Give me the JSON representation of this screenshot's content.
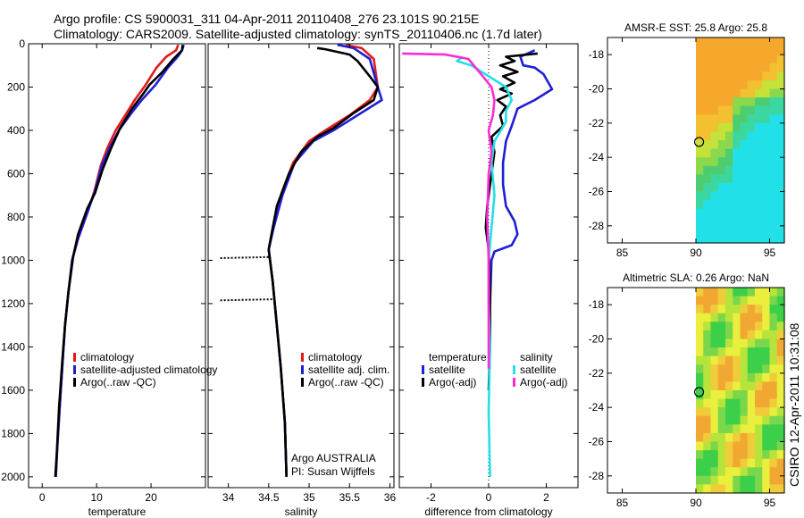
{
  "figure": {
    "title_line1": "Argo profile: CS 5900031_311 04-Apr-2011 20110408_276 23.101S 90.215E",
    "title_line2": "Climatology: CARS2009. Satellite-adjusted climatology: synTS_20110406.nc (1.7d later)",
    "side_stamp": "CSIRO 12-Apr-2011 10:31:08",
    "argo_credit_1": "Argo AUSTRALIA",
    "argo_credit_2": "PI: Susan Wijffels"
  },
  "colors": {
    "climatology": "#e31a1c",
    "satellite": "#1f1fd6",
    "argo": "#000000",
    "cyan": "#22e0e8",
    "magenta": "#ff2bd6"
  },
  "chart_data": [
    {
      "type": "line",
      "id": "temperature",
      "xlabel": "temperature",
      "xlim": [
        -2.5,
        30
      ],
      "ylim": [
        2050,
        0
      ],
      "yreversed": true,
      "xticks": [
        0,
        10,
        20
      ],
      "yticks": [
        0,
        200,
        400,
        600,
        800,
        1000,
        1200,
        1400,
        1600,
        1800,
        2000
      ],
      "legend": [
        "climatology",
        "satellite-adjusted climatology",
        "Argo(..raw -QC)"
      ],
      "series": [
        {
          "name": "climatology",
          "color": "climatology",
          "points": [
            [
              25,
              5
            ],
            [
              24.6,
              30
            ],
            [
              22.8,
              60
            ],
            [
              21,
              110
            ],
            [
              19,
              190
            ],
            [
              17,
              260
            ],
            [
              15.5,
              320
            ],
            [
              13.5,
              400
            ],
            [
              12,
              480
            ],
            [
              10.8,
              560
            ],
            [
              9.6,
              680
            ],
            [
              8.3,
              780
            ],
            [
              6.6,
              900
            ],
            [
              5.5,
              1000
            ],
            [
              4.8,
              1150
            ],
            [
              4.2,
              1300
            ],
            [
              3.8,
              1450
            ],
            [
              3.3,
              1650
            ],
            [
              2.8,
              1850
            ],
            [
              2.5,
              2000
            ]
          ]
        },
        {
          "name": "satellite-adjusted climatology",
          "color": "satellite",
          "points": [
            [
              26,
              5
            ],
            [
              25.7,
              30
            ],
            [
              24.9,
              60
            ],
            [
              23.1,
              110
            ],
            [
              20.8,
              190
            ],
            [
              18.3,
              260
            ],
            [
              16.4,
              320
            ],
            [
              14.1,
              400
            ],
            [
              12.4,
              480
            ],
            [
              11,
              560
            ],
            [
              9.7,
              680
            ],
            [
              8.3,
              780
            ],
            [
              6.6,
              900
            ],
            [
              5.5,
              1000
            ],
            [
              4.8,
              1150
            ],
            [
              4.2,
              1300
            ],
            [
              3.8,
              1450
            ],
            [
              3.3,
              1650
            ],
            [
              2.8,
              1850
            ],
            [
              2.5,
              2000
            ]
          ]
        },
        {
          "name": "Argo(..raw -QC)",
          "color": "argo",
          "points": [
            [
              25.8,
              5
            ],
            [
              25.7,
              30
            ],
            [
              24.1,
              70
            ],
            [
              22.1,
              130
            ],
            [
              19.7,
              190
            ],
            [
              18.6,
              230
            ],
            [
              16.5,
              300
            ],
            [
              14.3,
              390
            ],
            [
              12.7,
              480
            ],
            [
              11.1,
              580
            ],
            [
              9.7,
              690
            ],
            [
              8.3,
              760
            ],
            [
              6.6,
              880
            ],
            [
              5.7,
              980
            ],
            [
              4.8,
              1150
            ],
            [
              4.2,
              1300
            ],
            [
              3.7,
              1460
            ],
            [
              3.1,
              1680
            ],
            [
              2.7,
              1880
            ],
            [
              2.4,
              2000
            ]
          ]
        }
      ]
    },
    {
      "type": "line",
      "id": "salinity",
      "xlabel": "salinity",
      "xlim": [
        33.75,
        36.05
      ],
      "ylim": [
        2050,
        0
      ],
      "yreversed": true,
      "xticks": [
        34,
        34.5,
        35,
        35.5,
        36
      ],
      "legend": [
        "climatology",
        "satellite adj. clim.",
        "Argo(..raw -QC)"
      ],
      "series": [
        {
          "name": "climatology",
          "color": "climatology",
          "points": [
            [
              35.45,
              5
            ],
            [
              35.65,
              20
            ],
            [
              35.8,
              70
            ],
            [
              35.85,
              200
            ],
            [
              35.75,
              260
            ],
            [
              35.5,
              330
            ],
            [
              35.2,
              400
            ],
            [
              35,
              450
            ],
            [
              34.8,
              550
            ],
            [
              34.65,
              700
            ],
            [
              34.55,
              850
            ],
            [
              34.5,
              950
            ],
            [
              34.55,
              1100
            ],
            [
              34.6,
              1300
            ],
            [
              34.65,
              1500
            ],
            [
              34.7,
              1750
            ],
            [
              34.72,
              2000
            ]
          ]
        },
        {
          "name": "satellite adj. clim.",
          "color": "satellite",
          "points": [
            [
              35.35,
              5
            ],
            [
              35.55,
              20
            ],
            [
              35.75,
              70
            ],
            [
              35.85,
              200
            ],
            [
              35.9,
              260
            ],
            [
              35.6,
              330
            ],
            [
              35.3,
              400
            ],
            [
              35.05,
              450
            ],
            [
              34.82,
              550
            ],
            [
              34.67,
              700
            ],
            [
              34.56,
              850
            ],
            [
              34.5,
              950
            ],
            [
              34.55,
              1100
            ],
            [
              34.6,
              1300
            ],
            [
              34.65,
              1500
            ],
            [
              34.7,
              1750
            ],
            [
              34.72,
              2000
            ]
          ]
        },
        {
          "name": "Argo(..raw -QC)",
          "color": "argo",
          "points": [
            [
              35.1,
              20
            ],
            [
              35.2,
              25
            ],
            [
              35.5,
              50
            ],
            [
              35.6,
              80
            ],
            [
              35.75,
              150
            ],
            [
              35.85,
              200
            ],
            [
              35.8,
              260
            ],
            [
              35.55,
              320
            ],
            [
              35.3,
              390
            ],
            [
              35.1,
              430
            ],
            [
              34.9,
              500
            ],
            [
              34.75,
              600
            ],
            [
              34.6,
              750
            ],
            [
              34.55,
              850
            ],
            [
              34.5,
              950
            ],
            [
              34.55,
              1100
            ],
            [
              34.6,
              1300
            ],
            [
              34.65,
              1500
            ],
            [
              34.7,
              1750
            ],
            [
              34.72,
              2000
            ]
          ]
        },
        {
          "name": "Argo flagged salinity",
          "color": "argo",
          "dotted": true,
          "points": [
            [
              33.9,
              990
            ],
            [
              34.5,
              985
            ]
          ]
        },
        {
          "name": "Argo flagged salinity 2",
          "color": "argo",
          "dotted": true,
          "points": [
            [
              33.9,
              1185
            ],
            [
              34.55,
              1180
            ]
          ]
        }
      ]
    },
    {
      "type": "line",
      "id": "difference",
      "xlabel": "difference from climatology",
      "xlim": [
        -3.1,
        3.1
      ],
      "ylim": [
        2050,
        0
      ],
      "yreversed": true,
      "xticks": [
        -2,
        0,
        2
      ],
      "legend_headers": [
        "temperature",
        "salinity"
      ],
      "legend": [
        "satellite",
        "Argo(-adj)",
        "satellite",
        "Argo(-adj)"
      ],
      "series": [
        {
          "name": "temperature satellite",
          "color": "satellite",
          "points": [
            [
              1.6,
              30
            ],
            [
              1.1,
              60
            ],
            [
              1.2,
              100
            ],
            [
              1.6,
              110
            ],
            [
              1.9,
              140
            ],
            [
              2.2,
              210
            ],
            [
              1.6,
              260
            ],
            [
              1.0,
              300
            ],
            [
              0.8,
              380
            ],
            [
              0.6,
              450
            ],
            [
              0.5,
              550
            ],
            [
              0.5,
              650
            ],
            [
              0.6,
              750
            ],
            [
              0.9,
              820
            ],
            [
              1.0,
              880
            ],
            [
              0.8,
              930
            ],
            [
              0.2,
              960
            ],
            [
              0.1,
              1000
            ],
            [
              0.05,
              1200
            ]
          ]
        },
        {
          "name": "temperature Argo(-adj)",
          "color": "argo",
          "points": [
            [
              1.7,
              45
            ],
            [
              0.6,
              60
            ],
            [
              0.9,
              80
            ],
            [
              0.4,
              100
            ],
            [
              1.0,
              130
            ],
            [
              0.5,
              150
            ],
            [
              0.9,
              180
            ],
            [
              0.4,
              210
            ],
            [
              0.8,
              230
            ],
            [
              0.3,
              260
            ],
            [
              0.6,
              290
            ],
            [
              0.4,
              330
            ],
            [
              0.5,
              380
            ],
            [
              0.1,
              430
            ],
            [
              0.2,
              500
            ],
            [
              0.1,
              600
            ],
            [
              -0.05,
              750
            ],
            [
              -0.1,
              850
            ],
            [
              0.0,
              950
            ],
            [
              0.05,
              1100
            ],
            [
              0.05,
              1400
            ],
            [
              0.0,
              1600
            ]
          ]
        },
        {
          "name": "salinity satellite",
          "color": "cyan",
          "points": [
            [
              -0.9,
              60
            ],
            [
              -1.1,
              80
            ],
            [
              -0.6,
              100
            ],
            [
              0.0,
              150
            ],
            [
              0.6,
              200
            ],
            [
              0.8,
              260
            ],
            [
              0.6,
              310
            ],
            [
              0.6,
              360
            ],
            [
              0.2,
              450
            ],
            [
              0.1,
              550
            ],
            [
              0.2,
              700
            ],
            [
              0.1,
              850
            ],
            [
              0.0,
              1000
            ],
            [
              0.0,
              1200
            ],
            [
              0.05,
              1400
            ],
            [
              0.0,
              1700
            ],
            [
              0.05,
              2000
            ]
          ]
        },
        {
          "name": "salinity Argo(-adj)",
          "color": "magenta",
          "points": [
            [
              -3.0,
              45
            ],
            [
              -1.5,
              50
            ],
            [
              -0.7,
              70
            ],
            [
              -0.2,
              150
            ],
            [
              0.1,
              200
            ],
            [
              0.2,
              260
            ],
            [
              0.15,
              330
            ],
            [
              0.0,
              400
            ],
            [
              0.1,
              500
            ],
            [
              0.0,
              600
            ],
            [
              -0.05,
              800
            ],
            [
              0.0,
              1000
            ],
            [
              0.0,
              1200
            ],
            [
              0.0,
              1500
            ]
          ]
        }
      ]
    },
    {
      "type": "heatmap",
      "id": "sst",
      "title": "AMSR-E SST: 25.8 Argo: 25.8",
      "xlim": [
        84,
        96
      ],
      "ylim": [
        -29,
        -17
      ],
      "xticks": [
        85,
        90,
        95
      ],
      "yticks": [
        -18,
        -20,
        -22,
        -24,
        -26,
        -28
      ],
      "data_xlim": [
        90,
        96
      ],
      "marker": [
        90.215,
        -23.101
      ],
      "palette": [
        "#22e0e8",
        "#3cd7a0",
        "#4ecd70",
        "#8ad84c",
        "#c4e23a",
        "#f2c030",
        "#f5a82c"
      ]
    },
    {
      "type": "heatmap",
      "id": "sla",
      "title": "Altimetric SLA: 0.26 Argo: NaN",
      "xlim": [
        84,
        96
      ],
      "ylim": [
        -29,
        -17
      ],
      "xticks": [
        85,
        90,
        95
      ],
      "yticks": [
        -18,
        -20,
        -22,
        -24,
        -26,
        -28
      ],
      "data_xlim": [
        90,
        96
      ],
      "marker": [
        90.215,
        -23.101
      ],
      "palette": [
        "#3cd04a",
        "#7ad64a",
        "#b7e43a",
        "#e9ef3c",
        "#f1cc3a",
        "#f1a832"
      ]
    }
  ]
}
